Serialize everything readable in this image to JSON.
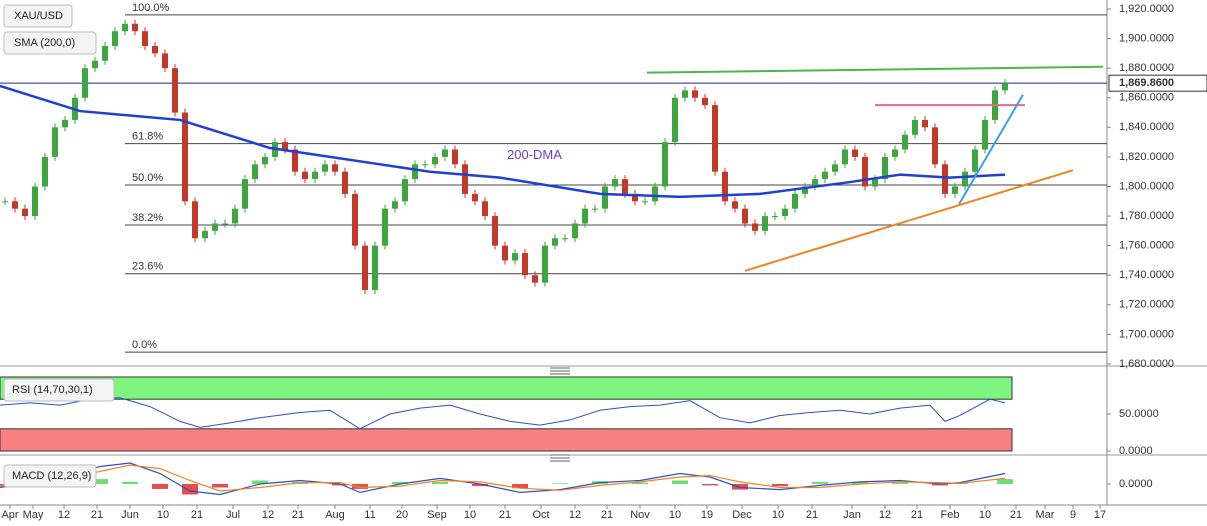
{
  "chart_data": [
    {
      "type": "candlestick",
      "symbol": "XAU/USD",
      "indicator": "SMA (200,0)",
      "up_color": "#3fa63f",
      "down_color": "#c0392b",
      "close": [
        1790,
        1785,
        1780,
        1800,
        1820,
        1840,
        1845,
        1860,
        1880,
        1885,
        1895,
        1905,
        1910,
        1905,
        1895,
        1890,
        1880,
        1850,
        1790,
        1765,
        1770,
        1775,
        1775,
        1785,
        1805,
        1815,
        1820,
        1830,
        1825,
        1810,
        1805,
        1810,
        1815,
        1810,
        1795,
        1760,
        1730,
        1760,
        1785,
        1790,
        1805,
        1815,
        1815,
        1820,
        1825,
        1815,
        1795,
        1790,
        1780,
        1760,
        1750,
        1755,
        1740,
        1735,
        1760,
        1765,
        1765,
        1775,
        1785,
        1785,
        1800,
        1805,
        1795,
        1790,
        1790,
        1800,
        1830,
        1860,
        1865,
        1860,
        1855,
        1810,
        1790,
        1785,
        1775,
        1770,
        1780,
        1780,
        1785,
        1795,
        1800,
        1805,
        1810,
        1815,
        1825,
        1820,
        1800,
        1805,
        1820,
        1825,
        1835,
        1845,
        1840,
        1815,
        1795,
        1800,
        1810,
        1825,
        1845,
        1865,
        1869.86
      ],
      "last_price": {
        "value": 1869.86,
        "label": "1,869.8600"
      },
      "xlim": [
        -0.5,
        110.2
      ],
      "xticks": [
        {
          "value": 0.5,
          "label": "Apr"
        },
        {
          "value": 2.8,
          "label": "May"
        },
        {
          "value": 5.9,
          "label": "12"
        },
        {
          "value": 9.2,
          "label": "21"
        },
        {
          "value": 12.5,
          "label": "Jun"
        },
        {
          "value": 15.8,
          "label": "10"
        },
        {
          "value": 19.2,
          "label": "21"
        },
        {
          "value": 22.8,
          "label": "Jul"
        },
        {
          "value": 26.3,
          "label": "12"
        },
        {
          "value": 29.3,
          "label": "21"
        },
        {
          "value": 33,
          "label": "Aug"
        },
        {
          "value": 36.5,
          "label": "11"
        },
        {
          "value": 39.7,
          "label": "20"
        },
        {
          "value": 43.2,
          "label": "Sep"
        },
        {
          "value": 46.5,
          "label": "10"
        },
        {
          "value": 50,
          "label": "21"
        },
        {
          "value": 53.6,
          "label": "Oct"
        },
        {
          "value": 57,
          "label": "12"
        },
        {
          "value": 60.2,
          "label": "21"
        },
        {
          "value": 63.5,
          "label": "Nov"
        },
        {
          "value": 67,
          "label": "10"
        },
        {
          "value": 70.2,
          "label": "19"
        },
        {
          "value": 73.7,
          "label": "Dec"
        },
        {
          "value": 77.3,
          "label": "10"
        },
        {
          "value": 80.7,
          "label": "21"
        },
        {
          "value": 84.7,
          "label": "Jan"
        },
        {
          "value": 88,
          "label": "12"
        },
        {
          "value": 91.2,
          "label": "21"
        },
        {
          "value": 94.5,
          "label": "Feb"
        },
        {
          "value": 98,
          "label": "10"
        },
        {
          "value": 101.1,
          "label": "21"
        },
        {
          "value": 104,
          "label": "Mar"
        },
        {
          "value": 106.8,
          "label": "9"
        },
        {
          "value": 109.5,
          "label": "17"
        }
      ],
      "ylim": [
        1679.3,
        1926.1
      ],
      "yticks": [
        {
          "value": 1920,
          "label": "1,920.0000"
        },
        {
          "value": 1900,
          "label": "1,900.0000"
        },
        {
          "value": 1880,
          "label": "1,880.0000"
        },
        {
          "value": 1860,
          "label": "1,860.0000"
        },
        {
          "value": 1840,
          "label": "1,840.0000"
        },
        {
          "value": 1820,
          "label": "1,820.0000"
        },
        {
          "value": 1800,
          "label": "1,800.0000"
        },
        {
          "value": 1780,
          "label": "1,780.0000"
        },
        {
          "value": 1760,
          "label": "1,760.0000"
        },
        {
          "value": 1740,
          "label": "1,740.0000"
        },
        {
          "value": 1720,
          "label": "1,720.0000"
        },
        {
          "value": 1700,
          "label": "1,700.0000"
        },
        {
          "value": 1680,
          "label": "1,680.0000"
        }
      ],
      "fib_levels": [
        {
          "value": 1916,
          "label": "100.0%"
        },
        {
          "value": 1829,
          "label": "61.8%"
        },
        {
          "value": 1801,
          "label": "50.0%"
        },
        {
          "value": 1774,
          "label": "38.2%"
        },
        {
          "value": 1741,
          "label": "23.6%"
        },
        {
          "value": 1688,
          "label": "0.0%"
        }
      ],
      "sma": {
        "name": "200-DMA",
        "color": "#1f3fd6",
        "x": [
          -0.5,
          7.5,
          17.5,
          26.5,
          32.5,
          37.5,
          42.5,
          49.5,
          59.5,
          67.5,
          75.5,
          84.5,
          89.5,
          94.5,
          100
        ],
        "values": [
          1868,
          1851,
          1845,
          1826,
          1820,
          1815,
          1810,
          1806,
          1795,
          1793,
          1795,
          1803,
          1808,
          1806,
          1808
        ]
      },
      "trendlines": [
        {
          "color": "#4cb84c",
          "x": [
            64.2,
            109.8
          ],
          "values": [
            1877,
            1881
          ]
        },
        {
          "color": "#e86a8a",
          "x": [
            87,
            102
          ],
          "values": [
            1855,
            1855
          ]
        },
        {
          "color": "#3a9ee8",
          "x": [
            95.4,
            101.8
          ],
          "values": [
            1788,
            1862
          ]
        },
        {
          "color": "#f0841e",
          "x": [
            74,
            106.8
          ],
          "values": [
            1743,
            1811
          ]
        }
      ]
    },
    {
      "type": "line",
      "title": "RSI (14,70,30,1)",
      "ylim": [
        0,
        100
      ],
      "yticks": [
        {
          "value": 50,
          "label": "50.0000"
        },
        {
          "value": 0,
          "label": "0.0000"
        }
      ],
      "bands": [
        {
          "range": [
            70,
            100
          ],
          "color": "#7ef57e"
        },
        {
          "range": [
            0,
            30
          ],
          "color": "#f88080"
        }
      ],
      "series": [
        {
          "color": "#2b4fd0",
          "x": [
            -0.5,
            2.5,
            5.5,
            8.5,
            11.5,
            14.5,
            17.5,
            19.5,
            22.5,
            25.5,
            29.5,
            32.5,
            35.5,
            38.5,
            41.5,
            44.5,
            47.5,
            50.5,
            53.5,
            56.5,
            59.5,
            62.5,
            65.5,
            68.5,
            71.5,
            74.5,
            77.5,
            80.5,
            83.5,
            86.5,
            89.5,
            92.5,
            94,
            95.5,
            98.5,
            100
          ],
          "values": [
            62,
            65,
            62,
            70,
            72,
            60,
            40,
            32,
            38,
            45,
            52,
            55,
            30,
            50,
            58,
            62,
            50,
            40,
            35,
            42,
            55,
            60,
            62,
            68,
            45,
            38,
            48,
            52,
            55,
            50,
            58,
            62,
            40,
            48,
            70,
            65
          ]
        }
      ]
    },
    {
      "type": "macd",
      "title": "MACD (12,26,9)",
      "ylim": [
        -30,
        30
      ],
      "yticks": [
        {
          "value": 0,
          "label": "0.0000"
        }
      ],
      "series": [
        {
          "color": "#2b4fd0",
          "x": [
            -0.5,
            5.5,
            9.5,
            12.5,
            15.5,
            18.5,
            21.5,
            25.5,
            29.5,
            33.5,
            35.5,
            39.5,
            43.5,
            47.5,
            51.5,
            55.5,
            59.5,
            63.5,
            67.5,
            70.5,
            73.5,
            77.5,
            81.5,
            85.5,
            89.5,
            93.5,
            95.5,
            100
          ],
          "values": [
            -5,
            10,
            25,
            30,
            15,
            -10,
            -15,
            0,
            5,
            0,
            -12,
            0,
            8,
            0,
            -12,
            -8,
            2,
            5,
            15,
            10,
            -5,
            -8,
            -2,
            3,
            5,
            0,
            2,
            15
          ]
        },
        {
          "color": "#f0841e",
          "x": [
            -0.5,
            5.5,
            9.5,
            12.5,
            15.5,
            18.5,
            21.5,
            25.5,
            29.5,
            33.5,
            35.5,
            39.5,
            43.5,
            47.5,
            51.5,
            55.5,
            59.5,
            63.5,
            67.5,
            70.5,
            73.5,
            77.5,
            81.5,
            85.5,
            89.5,
            93.5,
            95.5,
            100
          ],
          "values": [
            -3,
            5,
            18,
            27,
            22,
            5,
            -10,
            -5,
            2,
            2,
            -5,
            -3,
            5,
            3,
            -6,
            -9,
            -2,
            3,
            10,
            12,
            3,
            -5,
            -5,
            0,
            3,
            2,
            1,
            8
          ]
        }
      ],
      "histogram": {
        "up_color": "#4cd44c",
        "down_color": "#e02020",
        "x": [
          -0.5,
          5.5,
          9.5,
          12.5,
          15.5,
          18.5,
          21.5,
          25.5,
          29.5,
          33.5,
          35.5,
          39.5,
          43.5,
          47.5,
          51.5,
          55.5,
          59.5,
          63.5,
          67.5,
          70.5,
          73.5,
          77.5,
          81.5,
          85.5,
          89.5,
          93.5,
          95.5,
          100
        ],
        "values": [
          -2,
          5,
          7,
          3,
          -7,
          -15,
          -5,
          5,
          3,
          -2,
          -7,
          3,
          3,
          -3,
          -6,
          1,
          4,
          2,
          5,
          -2,
          -8,
          -3,
          3,
          3,
          2,
          -2,
          1,
          7
        ]
      }
    }
  ]
}
